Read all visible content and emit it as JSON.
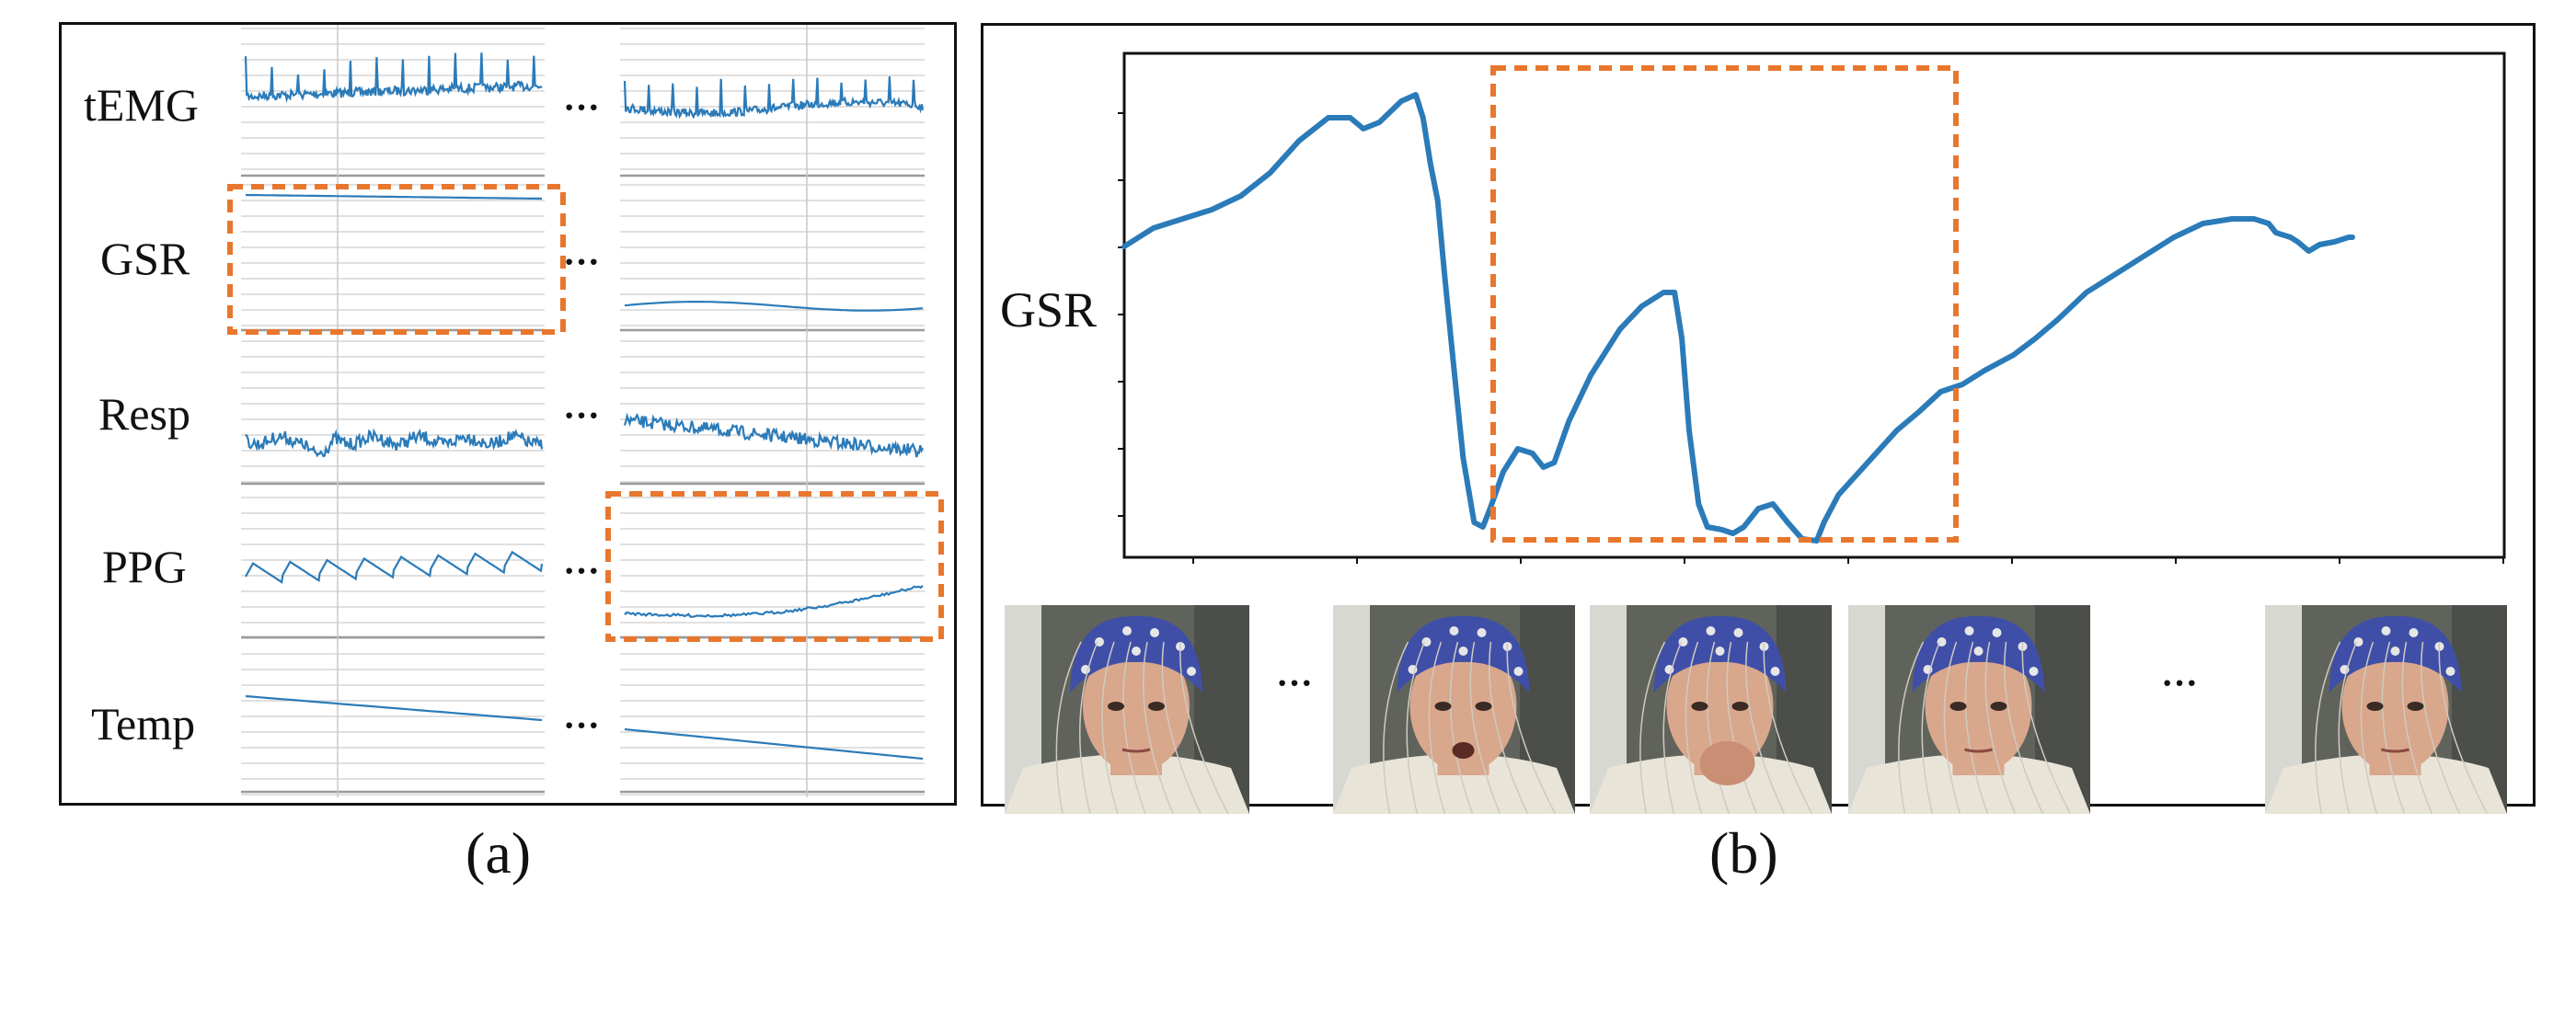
{
  "panel_a": {
    "caption": "(a)",
    "signals": [
      {
        "name": "tEMG"
      },
      {
        "name": "GSR"
      },
      {
        "name": "Resp"
      },
      {
        "name": "PPG"
      },
      {
        "name": "Temp"
      }
    ],
    "ellipsis": "···",
    "highlighted": [
      "GSR (left segment)",
      "PPG (right segment)"
    ]
  },
  "panel_b": {
    "caption": "(b)",
    "ylabel": "GSR",
    "ellipsis": "···",
    "frames": 5
  },
  "colors": {
    "signal": "#2b7bb9",
    "highlight": "#e8772e",
    "grid": "#d6d6d6",
    "frame_bg": "#5f635c",
    "cap": "#3f4fa8",
    "skin": "#d9a78c"
  }
}
